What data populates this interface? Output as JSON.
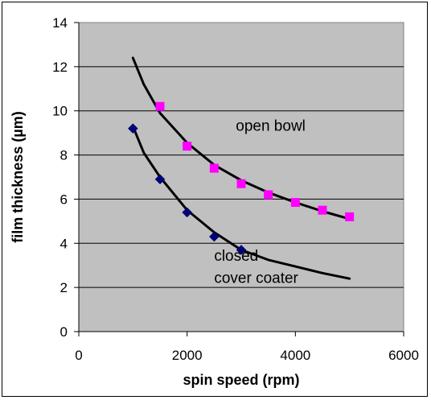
{
  "chart_data": {
    "type": "scatter",
    "title": "",
    "xlabel": "spin speed (rpm)",
    "ylabel": "film thickness (µm)",
    "xlim": [
      0,
      6000
    ],
    "ylim": [
      0,
      14
    ],
    "xticks": [
      0,
      2000,
      4000,
      6000
    ],
    "yticks": [
      0,
      2,
      4,
      6,
      8,
      10,
      12,
      14
    ],
    "grid": "horizontal",
    "plot_background": "#c0c0c0",
    "series": [
      {
        "marker": "square",
        "color": "#ff00ff",
        "x": [
          1500,
          2000,
          2500,
          3000,
          3500,
          4000,
          4500,
          5000
        ],
        "y": [
          10.2,
          8.4,
          7.4,
          6.7,
          6.2,
          5.85,
          5.5,
          5.2
        ]
      },
      {
        "marker": "diamond",
        "color": "#000080",
        "x": [
          1000,
          1500,
          2000,
          2500,
          3000
        ],
        "y": [
          9.2,
          6.9,
          5.4,
          4.3,
          3.7
        ]
      }
    ],
    "trendlines": [
      {
        "x": [
          1000,
          1200,
          1500,
          2000,
          2500,
          3000,
          3500,
          4000,
          4500,
          5000
        ],
        "y": [
          12.4,
          11.2,
          9.9,
          8.55,
          7.55,
          6.85,
          6.3,
          5.85,
          5.45,
          5.1
        ]
      },
      {
        "x": [
          1000,
          1200,
          1500,
          2000,
          2500,
          3000,
          3500,
          4000,
          4500,
          5000
        ],
        "y": [
          9.3,
          8.1,
          7.0,
          5.5,
          4.5,
          3.7,
          3.25,
          2.95,
          2.65,
          2.4
        ]
      }
    ],
    "annotations": [
      {
        "text": "open bowl",
        "x": 2900,
        "y": 9.1
      },
      {
        "text": "closed",
        "x": 2500,
        "y": 3.2
      },
      {
        "text": "cover coater",
        "x": 2500,
        "y": 2.2
      }
    ]
  }
}
